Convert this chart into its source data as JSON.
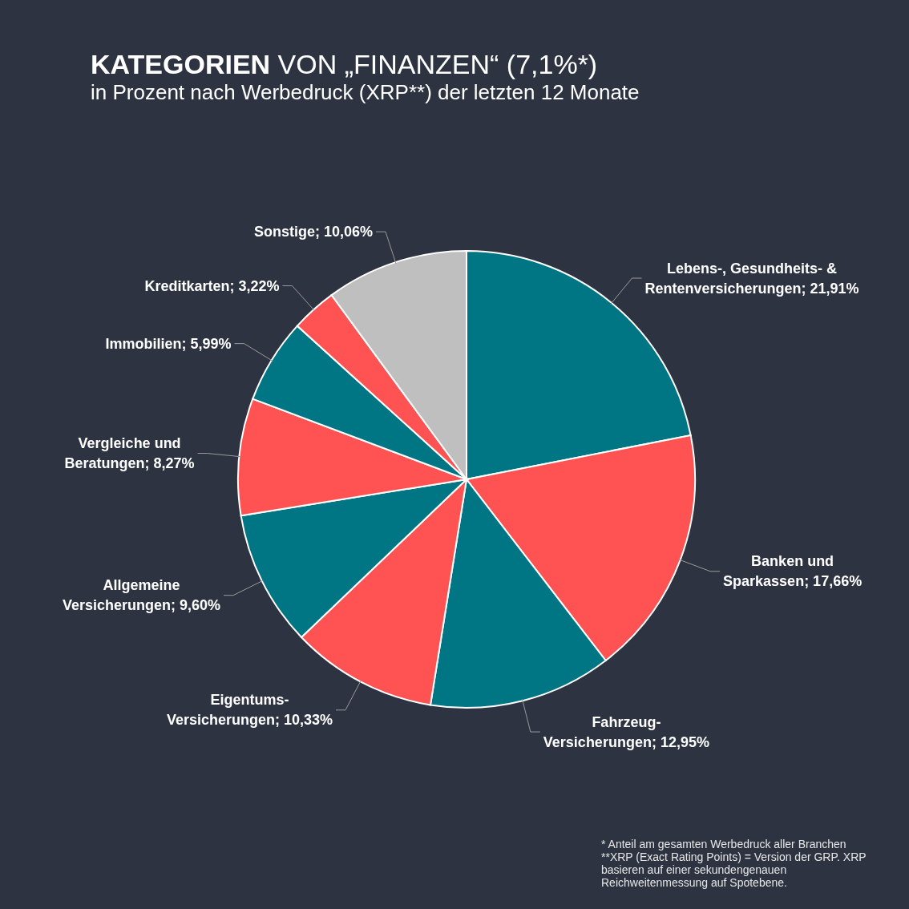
{
  "chart_data": {
    "type": "pie",
    "title": "KATEGORIEN VON „FINANZEN“ (7,1%*)",
    "subtitle": "in Prozent nach Werbedruck (XRP**) der letzten 12 Monate",
    "categories": [
      "Lebens-, Gesundheits- & Rentenversicherungen",
      "Banken und Sparkassen",
      "Fahrzeug-Versicherungen",
      "Eigentums-Versicherungen",
      "Allgemeine Versicherungen",
      "Vergleiche und Beratungen",
      "Immobilien",
      "Kreditkarten",
      "Sonstige"
    ],
    "values": [
      21.91,
      17.66,
      12.95,
      10.33,
      9.6,
      8.27,
      5.99,
      3.22,
      10.06
    ],
    "value_labels": [
      "21,91%",
      "17,66%",
      "12,95%",
      "10,33%",
      "9,60%",
      "8,27%",
      "5,99%",
      "3,22%",
      "10,06%"
    ],
    "colors": [
      "#007684",
      "#ff5252",
      "#007684",
      "#ff5252",
      "#007684",
      "#ff5252",
      "#007684",
      "#ff5252",
      "#bfbfbf"
    ],
    "annotations": [
      "* Anteil am gesamten Werbedruck aller Branchen",
      "**XRP (Exact Rating Points) = Version der GRP. XRP basieren auf einer sekundengenauen Reichweitenmessung auf Spotebene."
    ]
  }
}
